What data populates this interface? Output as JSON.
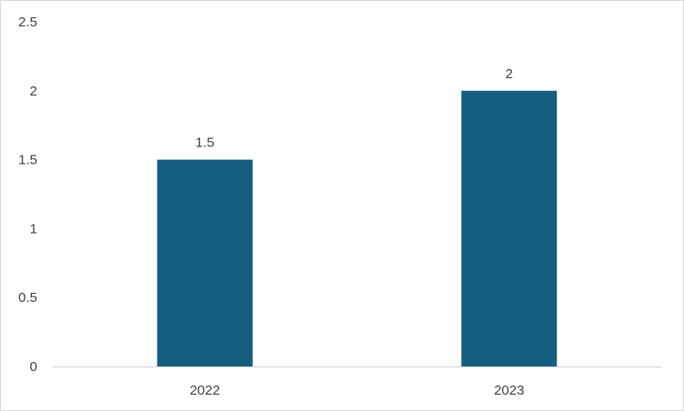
{
  "chart_data": {
    "type": "bar",
    "categories": [
      "2022",
      "2023"
    ],
    "values": [
      1.5,
      2
    ],
    "data_labels": [
      "1.5",
      "2"
    ],
    "y_ticks": [
      "0",
      "0.5",
      "1",
      "1.5",
      "2",
      "2.5"
    ],
    "ylim": [
      0,
      2.5
    ],
    "title": "",
    "xlabel": "",
    "ylabel": "",
    "grid": false,
    "legend": "none",
    "bar_color": "#165e80",
    "axis_color": "#d9d9d9"
  }
}
